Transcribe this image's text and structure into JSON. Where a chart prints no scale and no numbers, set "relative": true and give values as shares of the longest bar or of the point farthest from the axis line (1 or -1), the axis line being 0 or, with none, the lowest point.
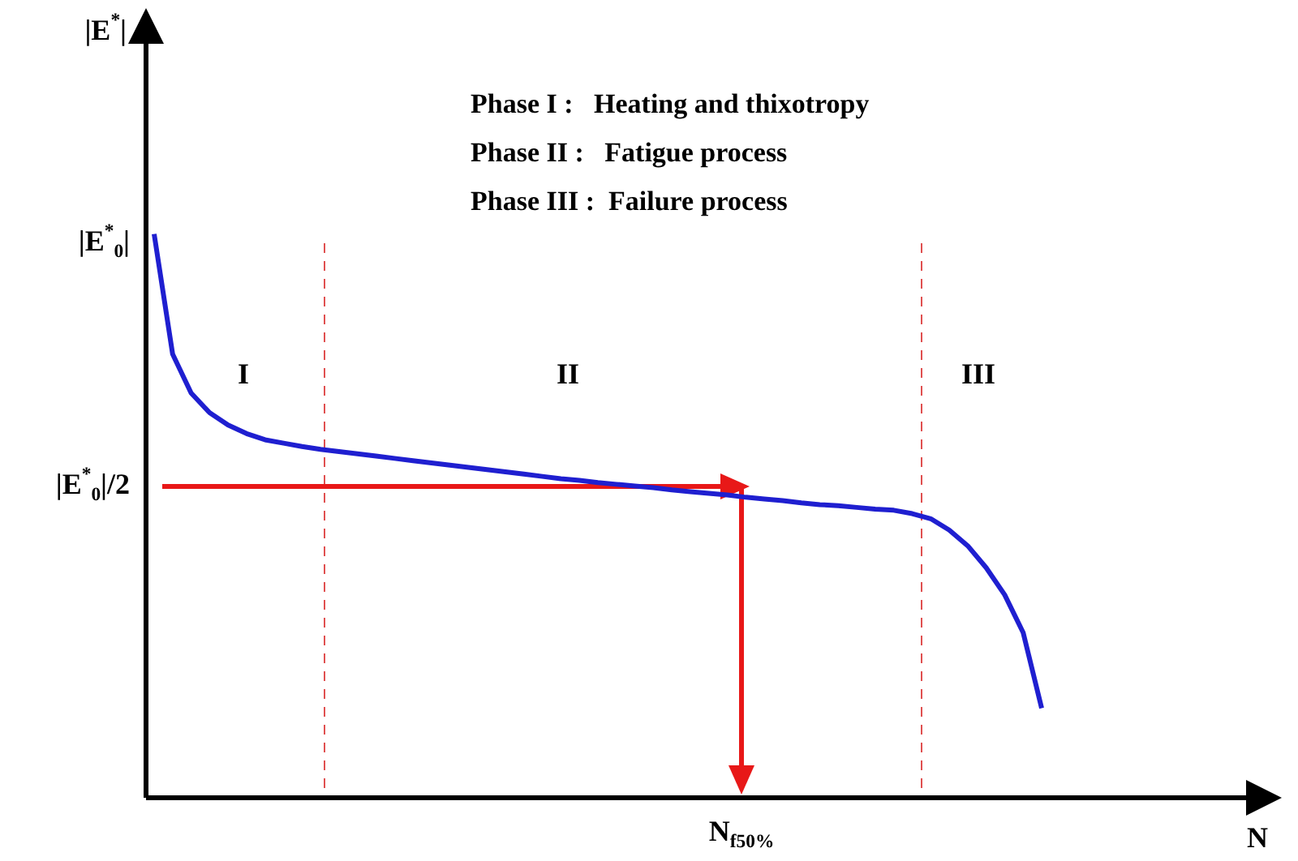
{
  "chart_data": {
    "type": "line",
    "relative": true,
    "categories": [
      null,
      null,
      null,
      null,
      null,
      null,
      null,
      null,
      null,
      null,
      null,
      null,
      null,
      null,
      null,
      null,
      null,
      null,
      null,
      null,
      null,
      null,
      null,
      null,
      null,
      null,
      null,
      null,
      null,
      null,
      null,
      null,
      null,
      null,
      null,
      null,
      null,
      null,
      null,
      null,
      null,
      null,
      null,
      null,
      null,
      null,
      null,
      null,
      null
    ],
    "series": [
      {
        "color": "#1f1fd0",
        "values": [
          1.0,
          0.787,
          0.718,
          0.683,
          0.661,
          0.646,
          0.635,
          0.629,
          0.623,
          0.618,
          0.614,
          0.61,
          0.606,
          0.602,
          0.598,
          0.594,
          0.59,
          0.586,
          0.582,
          0.578,
          0.574,
          0.57,
          0.566,
          0.563,
          0.559,
          0.556,
          0.553,
          0.55,
          0.546,
          0.543,
          0.54,
          0.537,
          0.533,
          0.53,
          0.527,
          0.523,
          0.52,
          0.518,
          0.515,
          0.512,
          0.51,
          0.504,
          0.495,
          0.475,
          0.447,
          0.408,
          0.36,
          0.293,
          0.159
        ]
      }
    ],
    "legend": false,
    "annotations": [
      "Phase I :   Heating and thixotropy",
      "Phase II :   Fatigue process",
      "Phase III :  Failure process",
      "|E$^{*}$$_{0}$|",
      "|E$^{*}$$_{0}$|/2",
      "I",
      "II",
      "III",
      "N$_{f50%}$",
      "|E$^{*}$|",
      "N"
    ]
  }
}
